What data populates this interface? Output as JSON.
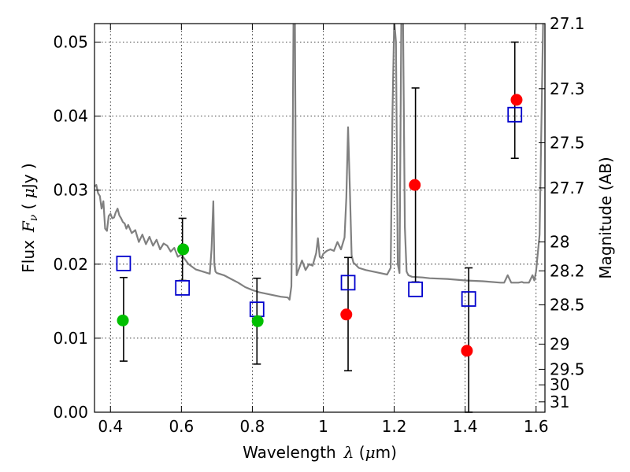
{
  "chart_data": {
    "type": "scatter",
    "xlabel": "Wavelength",
    "xlabel_symbol": "λ",
    "xlabel_unit_open": " (",
    "xlabel_unit_mu": "μ",
    "xlabel_unit_close": "m)",
    "ylabel": "Flux",
    "ylabel_symbol": "F",
    "ylabel_sub": "ν",
    "ylabel_unit_open": " ( ",
    "ylabel_unit_mu": "μ",
    "ylabel_unit_close": "Jy )",
    "y2label": "Magnitude (AB)",
    "xlim": [
      0.355,
      1.625
    ],
    "ylim": [
      0.0,
      0.0525
    ],
    "grid": true,
    "xticks": [
      0.4,
      0.6,
      0.8,
      1.0,
      1.2,
      1.4,
      1.6
    ],
    "xtick_labels": [
      "0.4",
      "0.6",
      "0.8",
      "1",
      "1.2",
      "1.4",
      "1.6"
    ],
    "yticks": [
      0.0,
      0.01,
      0.02,
      0.03,
      0.04,
      0.05
    ],
    "ytick_labels": [
      "0.00",
      "0.01",
      "0.02",
      "0.03",
      "0.04",
      "0.05"
    ],
    "y2ticks": [
      {
        "label": "27.1",
        "flux": 0.0525
      },
      {
        "label": "27.3",
        "flux": 0.0437
      },
      {
        "label": "27.5",
        "flux": 0.0364
      },
      {
        "label": "27.7",
        "flux": 0.0303
      },
      {
        "label": "28",
        "flux": 0.023
      },
      {
        "label": "28.2",
        "flux": 0.0191
      },
      {
        "label": "28.5",
        "flux": 0.0145
      },
      {
        "label": "29",
        "flux": 0.0092
      },
      {
        "label": "29.5",
        "flux": 0.0058
      },
      {
        "label": "30",
        "flux": 0.0037
      },
      {
        "label": "31",
        "flux": 0.0014
      }
    ],
    "series": [
      {
        "kind": "line",
        "color": "#808080",
        "x": [
          0.355,
          0.36,
          0.365,
          0.37,
          0.375,
          0.38,
          0.385,
          0.39,
          0.395,
          0.4,
          0.405,
          0.41,
          0.415,
          0.42,
          0.425,
          0.43,
          0.435,
          0.44,
          0.445,
          0.45,
          0.46,
          0.47,
          0.48,
          0.49,
          0.5,
          0.51,
          0.52,
          0.53,
          0.54,
          0.55,
          0.56,
          0.57,
          0.58,
          0.59,
          0.6,
          0.62,
          0.64,
          0.66,
          0.68,
          0.685,
          0.69,
          0.693,
          0.696,
          0.7,
          0.72,
          0.74,
          0.76,
          0.78,
          0.8,
          0.82,
          0.84,
          0.86,
          0.88,
          0.9,
          0.905,
          0.91,
          0.913,
          0.916,
          0.918,
          0.92,
          0.922,
          0.925,
          0.93,
          0.94,
          0.95,
          0.96,
          0.97,
          0.98,
          0.985,
          0.99,
          0.995,
          1.0,
          1.01,
          1.02,
          1.03,
          1.04,
          1.05,
          1.06,
          1.065,
          1.07,
          1.075,
          1.08,
          1.085,
          1.09,
          1.1,
          1.12,
          1.14,
          1.16,
          1.18,
          1.19,
          1.195,
          1.2,
          1.205,
          1.21,
          1.215,
          1.22,
          1.225,
          1.23,
          1.235,
          1.24,
          1.25,
          1.28,
          1.3,
          1.35,
          1.4,
          1.45,
          1.5,
          1.51,
          1.52,
          1.53,
          1.55,
          1.56,
          1.565,
          1.57,
          1.58,
          1.59,
          1.595,
          1.6,
          1.61,
          1.62,
          1.625
        ],
        "values": [
          0.0305,
          0.0307,
          0.0296,
          0.0292,
          0.0275,
          0.0285,
          0.0248,
          0.0245,
          0.0265,
          0.0268,
          0.0262,
          0.0263,
          0.027,
          0.0275,
          0.0266,
          0.0262,
          0.0257,
          0.0255,
          0.0248,
          0.0253,
          0.0242,
          0.0246,
          0.023,
          0.024,
          0.0227,
          0.0237,
          0.0225,
          0.0233,
          0.022,
          0.0228,
          0.0225,
          0.0217,
          0.0222,
          0.021,
          0.0213,
          0.02,
          0.0193,
          0.019,
          0.0187,
          0.022,
          0.0285,
          0.02,
          0.019,
          0.0188,
          0.0185,
          0.018,
          0.0175,
          0.0169,
          0.0165,
          0.0162,
          0.016,
          0.0158,
          0.0156,
          0.0155,
          0.0152,
          0.017,
          0.03,
          0.053,
          0.053,
          0.053,
          0.035,
          0.0185,
          0.0192,
          0.0205,
          0.0192,
          0.02,
          0.0198,
          0.0215,
          0.0235,
          0.021,
          0.0208,
          0.0214,
          0.0218,
          0.022,
          0.0218,
          0.023,
          0.022,
          0.0236,
          0.029,
          0.0385,
          0.03,
          0.0212,
          0.0202,
          0.02,
          0.0195,
          0.0192,
          0.019,
          0.0188,
          0.0186,
          0.0195,
          0.04,
          0.053,
          0.05,
          0.02,
          0.0188,
          0.053,
          0.053,
          0.025,
          0.019,
          0.0185,
          0.0183,
          0.0182,
          0.0181,
          0.018,
          0.0178,
          0.0177,
          0.0175,
          0.0175,
          0.0185,
          0.0175,
          0.0175,
          0.0176,
          0.0175,
          0.0175,
          0.0175,
          0.0185,
          0.0178,
          0.019,
          0.024,
          0.053,
          0.053
        ]
      },
      {
        "kind": "scatter",
        "marker": "circle",
        "color": "#00bf00",
        "x": [
          0.435,
          0.605,
          0.815
        ],
        "values": [
          0.0124,
          0.022,
          0.0123
        ]
      },
      {
        "kind": "scatter",
        "marker": "circle",
        "color": "#ff0000",
        "x": [
          1.065,
          1.258,
          1.405,
          1.545
        ],
        "values": [
          0.0132,
          0.0307,
          0.0083,
          0.0422
        ]
      },
      {
        "kind": "scatter",
        "marker": "square",
        "color": "#0000cc",
        "x": [
          0.437,
          0.603,
          0.813,
          1.07,
          1.26,
          1.41,
          1.54
        ],
        "values": [
          0.0201,
          0.0168,
          0.0139,
          0.0175,
          0.0166,
          0.0153,
          0.0402
        ]
      },
      {
        "kind": "errorbar",
        "color": "#000000",
        "x": [
          0.437,
          0.603,
          0.813,
          1.07,
          1.26,
          1.41,
          1.54
        ],
        "lower": [
          0.0069,
          0.0178,
          0.0065,
          0.0056,
          0.0176,
          0.0,
          0.0343
        ],
        "upper": [
          0.0182,
          0.0262,
          0.0181,
          0.0209,
          0.0438,
          0.0195,
          0.05
        ]
      }
    ]
  }
}
